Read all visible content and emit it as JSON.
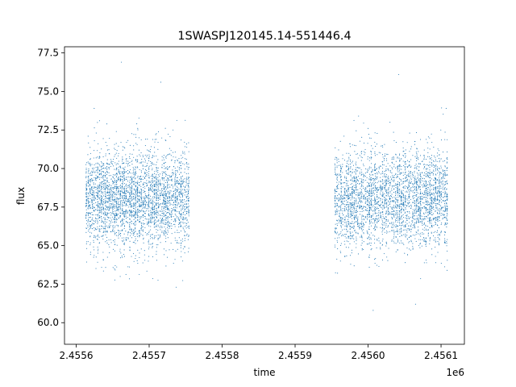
{
  "chart_data": {
    "type": "scatter",
    "title": "1SWASPJ120145.14-551446.4",
    "xlabel": "time",
    "ylabel": "flux",
    "x_offset_text": "1e6",
    "xlim": [
      2455584,
      2456132
    ],
    "ylim": [
      58.6,
      77.9
    ],
    "x_ticks": [
      2455600,
      2455700,
      2455800,
      2455900,
      2456000,
      2456100
    ],
    "x_tick_labels": [
      "2.4556",
      "2.4557",
      "2.4558",
      "2.4559",
      "2.4560",
      "2.4561"
    ],
    "y_ticks": [
      60.0,
      62.5,
      65.0,
      67.5,
      70.0,
      72.5,
      75.0,
      77.5
    ],
    "y_tick_labels": [
      "60.0",
      "62.5",
      "65.0",
      "67.5",
      "70.0",
      "72.5",
      "75.0",
      "77.5"
    ],
    "grid": false,
    "legend": "none",
    "marker_color": "#1f77b4",
    "series": [
      {
        "x_ranges": [
          [
            2455614,
            2455754
          ],
          [
            2455955,
            2456108
          ]
        ],
        "points": [
          [
            2455614,
            68.2
          ],
          [
            2455616,
            70.9
          ],
          [
            2455618,
            66.4
          ],
          [
            2455620,
            69.3
          ],
          [
            2455622,
            67.0
          ],
          [
            2455625,
            71.8
          ],
          [
            2455627,
            65.6
          ],
          [
            2455629,
            68.7
          ],
          [
            2455632,
            73.1
          ],
          [
            2455634,
            67.5
          ],
          [
            2455636,
            70.2
          ],
          [
            2455639,
            66.1
          ],
          [
            2455641,
            69.0
          ],
          [
            2455643,
            71.2
          ],
          [
            2455646,
            67.9
          ],
          [
            2455648,
            65.9
          ],
          [
            2455651,
            70.6
          ],
          [
            2455653,
            68.3
          ],
          [
            2455655,
            72.4
          ],
          [
            2455658,
            66.8
          ],
          [
            2455660,
            69.7
          ],
          [
            2455662,
            76.9
          ],
          [
            2455665,
            67.2
          ],
          [
            2455667,
            70.1
          ],
          [
            2455669,
            65.4
          ],
          [
            2455672,
            68.9
          ],
          [
            2455674,
            71.5
          ],
          [
            2455676,
            67.6
          ],
          [
            2455679,
            69.4
          ],
          [
            2455681,
            66.3
          ],
          [
            2455683,
            72.9
          ],
          [
            2455686,
            68.0
          ],
          [
            2455688,
            70.8
          ],
          [
            2455690,
            66.0
          ],
          [
            2455693,
            69.1
          ],
          [
            2455695,
            71.9
          ],
          [
            2455697,
            67.4
          ],
          [
            2455700,
            68.6
          ],
          [
            2455702,
            65.7
          ],
          [
            2455704,
            70.4
          ],
          [
            2455707,
            67.8
          ],
          [
            2455709,
            72.2
          ],
          [
            2455711,
            66.6
          ],
          [
            2455714,
            69.5
          ],
          [
            2455716,
            75.6
          ],
          [
            2455718,
            67.1
          ],
          [
            2455721,
            70.0
          ],
          [
            2455723,
            65.8
          ],
          [
            2455725,
            68.8
          ],
          [
            2455728,
            71.3
          ],
          [
            2455730,
            66.9
          ],
          [
            2455732,
            69.9
          ],
          [
            2455735,
            67.3
          ],
          [
            2455737,
            62.3
          ],
          [
            2455739,
            70.5
          ],
          [
            2455742,
            66.5
          ],
          [
            2455744,
            68.4
          ],
          [
            2455746,
            71.1
          ],
          [
            2455749,
            67.7
          ],
          [
            2455751,
            69.2
          ],
          [
            2455753,
            66.2
          ],
          [
            2455754,
            70.3
          ],
          [
            2455955,
            68.1
          ],
          [
            2455957,
            70.7
          ],
          [
            2455960,
            66.7
          ],
          [
            2455962,
            69.6
          ],
          [
            2455965,
            67.4
          ],
          [
            2455967,
            72.1
          ],
          [
            2455970,
            65.5
          ],
          [
            2455972,
            68.9
          ],
          [
            2455975,
            71.6
          ],
          [
            2455977,
            67.0
          ],
          [
            2455980,
            70.2
          ],
          [
            2455982,
            66.0
          ],
          [
            2455985,
            69.3
          ],
          [
            2455987,
            73.4
          ],
          [
            2455990,
            67.8
          ],
          [
            2455992,
            64.8
          ],
          [
            2455995,
            70.9
          ],
          [
            2455997,
            68.5
          ],
          [
            2456000,
            72.6
          ],
          [
            2456002,
            66.4
          ],
          [
            2456005,
            69.8
          ],
          [
            2456007,
            60.8
          ],
          [
            2456010,
            67.1
          ],
          [
            2456012,
            70.0
          ],
          [
            2456015,
            65.3
          ],
          [
            2456017,
            68.7
          ],
          [
            2456020,
            71.4
          ],
          [
            2456022,
            67.5
          ],
          [
            2456025,
            69.5
          ],
          [
            2456027,
            66.2
          ],
          [
            2456030,
            73.0
          ],
          [
            2456032,
            68.2
          ],
          [
            2456035,
            70.6
          ],
          [
            2456037,
            65.9
          ],
          [
            2456040,
            69.0
          ],
          [
            2456042,
            76.1
          ],
          [
            2456045,
            67.3
          ],
          [
            2456047,
            68.4
          ],
          [
            2456050,
            64.5
          ],
          [
            2456052,
            70.3
          ],
          [
            2456055,
            67.7
          ],
          [
            2456057,
            72.3
          ],
          [
            2456060,
            66.6
          ],
          [
            2456062,
            69.4
          ],
          [
            2456065,
            61.2
          ],
          [
            2456067,
            67.2
          ],
          [
            2456070,
            70.1
          ],
          [
            2456072,
            65.6
          ],
          [
            2456075,
            68.8
          ],
          [
            2456077,
            71.2
          ],
          [
            2456080,
            66.9
          ],
          [
            2456082,
            69.7
          ],
          [
            2456085,
            67.6
          ],
          [
            2456087,
            70.4
          ],
          [
            2456090,
            66.3
          ],
          [
            2456093,
            68.6
          ],
          [
            2456095,
            71.0
          ],
          [
            2456098,
            67.9
          ],
          [
            2456100,
            69.1
          ],
          [
            2456103,
            66.8
          ],
          [
            2456105,
            70.5
          ],
          [
            2456107,
            73.9
          ],
          [
            2456108,
            67.4
          ]
        ]
      }
    ]
  }
}
